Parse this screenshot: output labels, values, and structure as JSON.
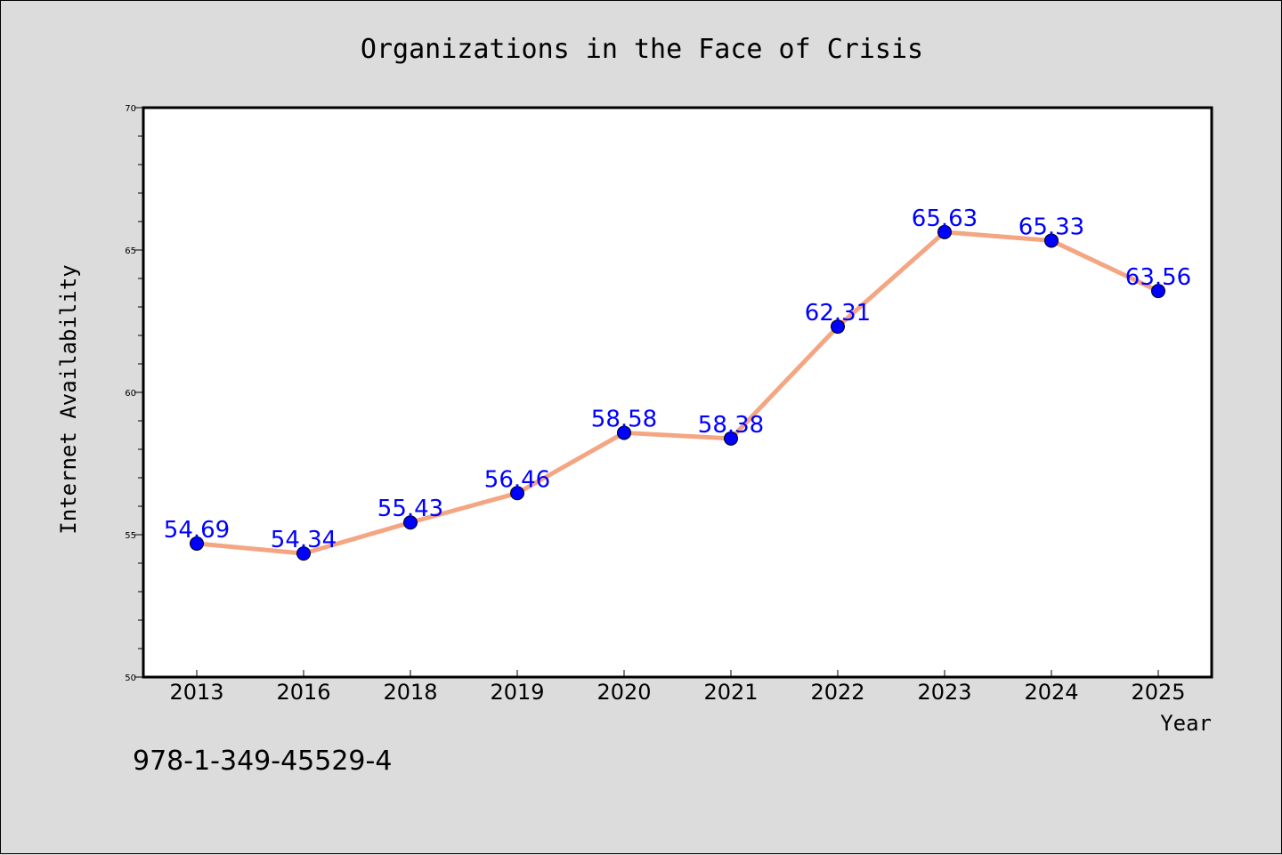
{
  "chart_data": {
    "type": "line",
    "title": "Organizations in the Face of Crisis",
    "xlabel": "Year",
    "ylabel": "Internet Availability",
    "categories": [
      "2013",
      "2016",
      "2018",
      "2019",
      "2020",
      "2021",
      "2022",
      "2023",
      "2024",
      "2025"
    ],
    "series": [
      {
        "values": [
          54.69,
          54.34,
          55.43,
          56.46,
          58.58,
          58.38,
          62.31,
          65.63,
          65.33,
          63.56
        ],
        "line_color": "#f4a582",
        "marker_color": "#0000ff"
      }
    ],
    "ylim": [
      50,
      70
    ],
    "yticks": [
      50,
      55,
      60,
      65,
      70
    ],
    "grid": false,
    "data_labels": true
  },
  "footer": {
    "isbn": "978-1-349-45529-4"
  }
}
